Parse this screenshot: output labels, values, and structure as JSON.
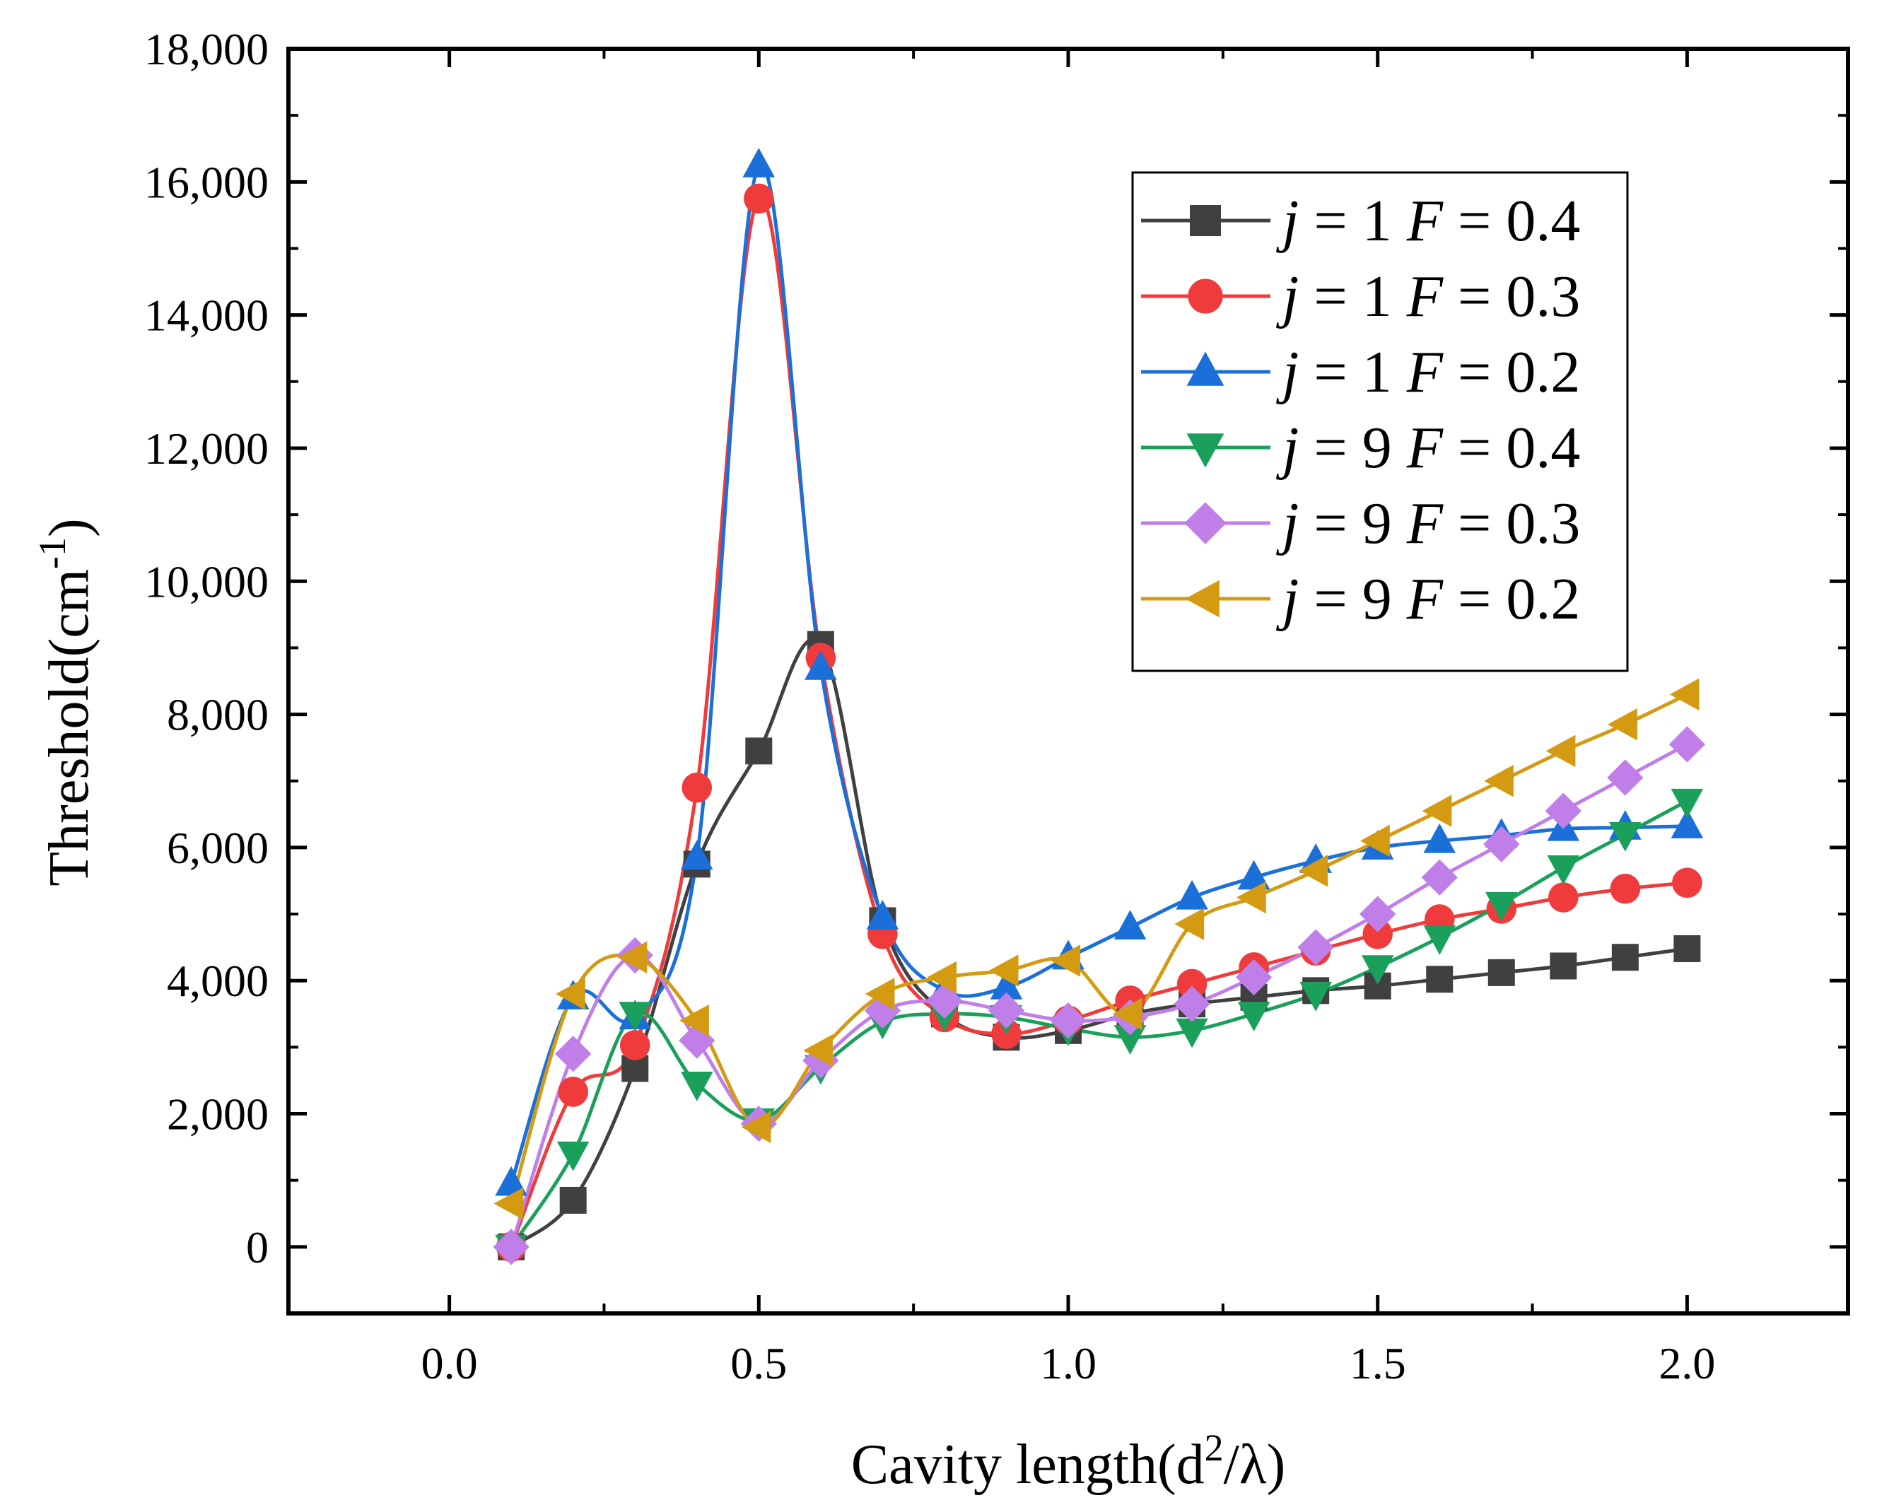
{
  "chart_data": {
    "type": "line",
    "xlabel": {
      "main": "Cavity length(d",
      "sup": "2",
      "tail": "/λ)"
    },
    "ylabel": {
      "main": "Threshold(cm",
      "sup": "-1",
      "tail": ")"
    },
    "xlim": [
      -0.26,
      2.26
    ],
    "ylim": [
      -1000,
      18000
    ],
    "xticks": [
      0.0,
      0.5,
      1.0,
      1.5,
      2.0
    ],
    "xtick_labels": [
      "0.0",
      "0.5",
      "1.0",
      "1.5",
      "2.0"
    ],
    "yticks": [
      0,
      2000,
      4000,
      6000,
      8000,
      10000,
      12000,
      14000,
      16000,
      18000
    ],
    "ytick_labels": [
      "0",
      "2,000",
      "4,000",
      "6,000",
      "8,000",
      "10,000",
      "12,000",
      "14,000",
      "16,000",
      "18,000"
    ],
    "legend_position": "top-right",
    "x": [
      0.1,
      0.2,
      0.3,
      0.4,
      0.5,
      0.6,
      0.7,
      0.8,
      0.9,
      1.0,
      1.1,
      1.2,
      1.3,
      1.4,
      1.5,
      1.6,
      1.7,
      1.8,
      1.9,
      2.0
    ],
    "series": [
      {
        "legend": [
          "j",
          " = 1 ",
          "F",
          " = 0.4"
        ],
        "color": "#404040",
        "marker": "square",
        "values": [
          0,
          700,
          2680,
          5750,
          7450,
          9050,
          4900,
          3500,
          3150,
          3250,
          3500,
          3650,
          3750,
          3850,
          3920,
          4020,
          4120,
          4220,
          4350,
          4480
        ]
      },
      {
        "legend": [
          "j",
          " = 1 ",
          "F",
          " = 0.3"
        ],
        "color": "#ef3b3b",
        "marker": "circle",
        "values": [
          0,
          2330,
          3030,
          6900,
          15750,
          8850,
          4700,
          3450,
          3200,
          3400,
          3700,
          3950,
          4200,
          4450,
          4700,
          4920,
          5080,
          5250,
          5380,
          5470
        ]
      },
      {
        "legend": [
          "j",
          " = 1 ",
          "F",
          " = 0.2"
        ],
        "color": "#1a6fd9",
        "marker": "triangle-up",
        "values": [
          950,
          3750,
          3450,
          5850,
          16250,
          8700,
          4950,
          3850,
          3900,
          4350,
          4800,
          5250,
          5550,
          5800,
          6000,
          6100,
          6180,
          6280,
          6300,
          6320
        ]
      },
      {
        "legend": [
          "j",
          " = 9 ",
          "F",
          " = 0.4"
        ],
        "color": "#1aa05a",
        "marker": "triangle-down",
        "values": [
          0,
          1400,
          3500,
          2450,
          1900,
          2700,
          3380,
          3500,
          3450,
          3280,
          3150,
          3250,
          3500,
          3800,
          4200,
          4650,
          5150,
          5700,
          6200,
          6700
        ]
      },
      {
        "legend": [
          "j",
          " = 9 ",
          "F",
          " = 0.3"
        ],
        "color": "#c07ee8",
        "marker": "diamond",
        "values": [
          0,
          2900,
          4380,
          3100,
          1850,
          2800,
          3550,
          3700,
          3550,
          3400,
          3450,
          3650,
          4050,
          4500,
          5000,
          5550,
          6050,
          6550,
          7050,
          7550
        ]
      },
      {
        "legend": [
          "j",
          " = 9 ",
          "F",
          " = 0.2"
        ],
        "color": "#d49a12",
        "marker": "triangle-left",
        "values": [
          650,
          3800,
          4350,
          3400,
          1800,
          2950,
          3800,
          4050,
          4150,
          4300,
          3500,
          4850,
          5250,
          5650,
          6100,
          6550,
          7000,
          7450,
          7850,
          8300
        ]
      }
    ]
  }
}
